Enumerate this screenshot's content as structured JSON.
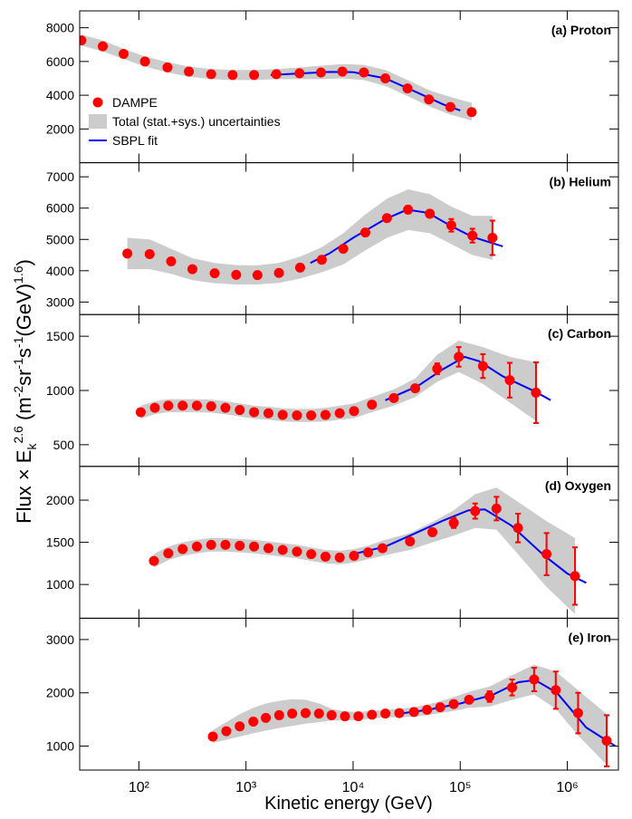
{
  "figure": {
    "xlabel": "Kinetic energy (GeV)",
    "xlog": true,
    "xlim": [
      28,
      3000000
    ],
    "xticks": [
      {
        "value": 100,
        "label": "10²"
      },
      {
        "value": 1000,
        "label": "10³"
      },
      {
        "value": 10000,
        "label": "10⁴"
      },
      {
        "value": 100000,
        "label": "10⁵"
      },
      {
        "value": 1000000,
        "label": "10⁶"
      }
    ],
    "ylabel_parts": [
      {
        "text": "Flux × E",
        "shift": "base"
      },
      {
        "text": "k",
        "shift": "sub"
      },
      {
        "text": "2.6",
        "shift": "super"
      },
      {
        "text": " (m",
        "shift": "base"
      },
      {
        "text": "-2",
        "shift": "super"
      },
      {
        "text": "sr",
        "shift": "base"
      },
      {
        "text": "-1",
        "shift": "super"
      },
      {
        "text": "s",
        "shift": "base"
      },
      {
        "text": "-1",
        "shift": "super"
      },
      {
        "text": "(GeV)",
        "shift": "base"
      },
      {
        "text": "1.6",
        "shift": "super"
      },
      {
        "text": ")",
        "shift": "base"
      }
    ],
    "legend": {
      "corner": "middle-left",
      "items": [
        {
          "name": "DAMPE",
          "color": "#ff0000"
        },
        {
          "name": "Total (stat.+sys.) uncertainties",
          "color": "#cccccc"
        },
        {
          "name": "SBPL fit",
          "color": "#0000ff"
        }
      ]
    }
  },
  "chart_data": [
    {
      "type": "scatter",
      "title": "(a) Proton",
      "ylim": [
        0,
        9000
      ],
      "yticks": [
        2000,
        4000,
        6000,
        8000
      ],
      "x": [
        29,
        46,
        72,
        114,
        185,
        293,
        473,
        750,
        1190,
        1920,
        3160,
        5010,
        7940,
        12600,
        20000,
        32200,
        51100,
        80900,
        128000
      ],
      "values": [
        7250,
        6900,
        6450,
        6000,
        5650,
        5400,
        5250,
        5200,
        5200,
        5250,
        5300,
        5350,
        5400,
        5350,
        5000,
        4400,
        3750,
        3300,
        3000
      ],
      "band_upper": [
        7600,
        7250,
        6750,
        6300,
        5950,
        5700,
        5550,
        5500,
        5500,
        5550,
        5650,
        5750,
        5850,
        5800,
        5500,
        4900,
        4300,
        3900,
        3550
      ],
      "band_lower": [
        6950,
        6600,
        6150,
        5700,
        5350,
        5100,
        4950,
        4900,
        4900,
        4950,
        4950,
        4950,
        5000,
        4900,
        4550,
        3950,
        3350,
        2850,
        2500
      ],
      "fit_x": [
        1700,
        3000,
        6000,
        10000,
        20000,
        40000,
        70000,
        100000
      ],
      "fit_values": [
        5200,
        5280,
        5380,
        5370,
        5000,
        4150,
        3450,
        3100
      ]
    },
    {
      "type": "scatter",
      "title": "(b) Helium",
      "ylim": [
        2600,
        7450
      ],
      "yticks": [
        3000,
        4000,
        5000,
        6000,
        7000
      ],
      "x": [
        78,
        126,
        200,
        316,
        510,
        810,
        1280,
        2030,
        3200,
        5100,
        8100,
        13000,
        20700,
        32600,
        52000,
        82500,
        130000,
        200000
      ],
      "values": [
        4550,
        4530,
        4300,
        4050,
        3920,
        3870,
        3860,
        3930,
        4100,
        4350,
        4700,
        5220,
        5680,
        5950,
        5820,
        5450,
        5120,
        5050
      ],
      "errors": [
        20,
        20,
        20,
        20,
        20,
        20,
        20,
        20,
        20,
        25,
        30,
        40,
        60,
        80,
        100,
        200,
        220,
        550
      ],
      "band_upper": [
        5050,
        5000,
        4700,
        4400,
        4250,
        4180,
        4170,
        4250,
        4450,
        4750,
        5200,
        5800,
        6300,
        6600,
        6450,
        6050,
        5750,
        5750
      ],
      "band_lower": [
        4050,
        4050,
        3900,
        3700,
        3600,
        3560,
        3560,
        3610,
        3750,
        3950,
        4200,
        4650,
        5050,
        5300,
        5200,
        4850,
        4500,
        4350
      ],
      "fit_x": [
        4000,
        6000,
        10000,
        20000,
        32000,
        50000,
        80000,
        130000,
        250000
      ],
      "fit_values": [
        4250,
        4550,
        5050,
        5650,
        5950,
        5850,
        5450,
        5080,
        4780
      ]
    },
    {
      "type": "scatter",
      "title": "(c) Carbon",
      "ylim": [
        300,
        1700
      ],
      "yticks": [
        500,
        1000,
        1500
      ],
      "x": [
        104,
        141,
        188,
        256,
        348,
        473,
        643,
        874,
        1190,
        1620,
        2200,
        2990,
        4060,
        5520,
        7500,
        10200,
        15000,
        24000,
        38000,
        61000,
        97000,
        163000,
        290000,
        510000
      ],
      "values": [
        800,
        840,
        860,
        860,
        860,
        855,
        840,
        820,
        800,
        790,
        775,
        770,
        770,
        775,
        790,
        810,
        870,
        930,
        1020,
        1200,
        1310,
        1225,
        1095,
        980
      ],
      "errors": [
        10,
        10,
        10,
        10,
        10,
        10,
        10,
        10,
        10,
        10,
        10,
        10,
        10,
        10,
        10,
        10,
        10,
        20,
        30,
        50,
        90,
        110,
        160,
        280
      ],
      "band_upper": [
        860,
        900,
        920,
        920,
        920,
        915,
        900,
        880,
        860,
        850,
        835,
        830,
        830,
        840,
        860,
        880,
        940,
        1010,
        1110,
        1330,
        1460,
        1400,
        1310,
        1260
      ],
      "band_lower": [
        740,
        780,
        800,
        800,
        800,
        795,
        780,
        760,
        740,
        730,
        715,
        710,
        710,
        715,
        730,
        745,
        800,
        860,
        940,
        1080,
        1170,
        1060,
        890,
        720
      ],
      "fit_x": [
        20000,
        40000,
        70000,
        110000,
        150000,
        250000,
        500000,
        700000
      ],
      "fit_values": [
        910,
        1040,
        1200,
        1310,
        1270,
        1130,
        990,
        910
      ]
    },
    {
      "type": "scatter",
      "title": "(d) Oxygen",
      "ylim": [
        600,
        2400
      ],
      "yticks": [
        1000,
        1500,
        2000
      ],
      "x": [
        138,
        188,
        256,
        348,
        473,
        643,
        874,
        1190,
        1620,
        2200,
        2990,
        4060,
        5520,
        7500,
        10200,
        13800,
        18800,
        34000,
        55000,
        87000,
        138000,
        218000,
        346000,
        640000,
        1180000
      ],
      "values": [
        1280,
        1370,
        1420,
        1450,
        1470,
        1470,
        1460,
        1450,
        1430,
        1410,
        1390,
        1360,
        1330,
        1320,
        1340,
        1380,
        1430,
        1510,
        1620,
        1730,
        1870,
        1900,
        1670,
        1360,
        1100
      ],
      "errors": [
        15,
        15,
        15,
        15,
        15,
        15,
        15,
        15,
        15,
        15,
        15,
        15,
        15,
        15,
        15,
        15,
        15,
        30,
        40,
        60,
        90,
        140,
        170,
        250,
        340
      ],
      "band_upper": [
        1360,
        1450,
        1500,
        1530,
        1550,
        1550,
        1540,
        1530,
        1510,
        1490,
        1470,
        1440,
        1410,
        1400,
        1420,
        1460,
        1520,
        1610,
        1740,
        1880,
        2070,
        2150,
        1980,
        1750,
        1550
      ],
      "band_lower": [
        1200,
        1290,
        1340,
        1370,
        1390,
        1390,
        1380,
        1370,
        1350,
        1330,
        1310,
        1280,
        1250,
        1240,
        1260,
        1300,
        1340,
        1410,
        1500,
        1580,
        1670,
        1650,
        1360,
        970,
        650
      ],
      "fit_x": [
        10000,
        20000,
        40000,
        70000,
        120000,
        170000,
        300000,
        600000,
        1000000,
        1500000
      ],
      "fit_values": [
        1360,
        1450,
        1620,
        1760,
        1880,
        1890,
        1700,
        1350,
        1130,
        1020
      ]
    },
    {
      "type": "scatter",
      "title": "(e) Iron",
      "ylim": [
        550,
        3400
      ],
      "yticks": [
        1000,
        2000,
        3000
      ],
      "x": [
        490,
        655,
        874,
        1170,
        1530,
        2040,
        2700,
        3600,
        4800,
        6300,
        8400,
        11200,
        15000,
        20000,
        27000,
        37000,
        49000,
        65000,
        87000,
        121000,
        188000,
        305000,
        490000,
        780000,
        1260000,
        2330000
      ],
      "values": [
        1180,
        1280,
        1370,
        1460,
        1530,
        1580,
        1610,
        1620,
        1610,
        1580,
        1560,
        1560,
        1590,
        1610,
        1620,
        1640,
        1680,
        1730,
        1790,
        1870,
        1930,
        2100,
        2250,
        2050,
        1620,
        1100
      ],
      "errors": [
        30,
        30,
        30,
        30,
        30,
        30,
        30,
        30,
        30,
        30,
        30,
        30,
        30,
        30,
        30,
        30,
        30,
        30,
        30,
        30,
        100,
        150,
        220,
        350,
        380,
        480
      ],
      "band_upper": [
        1300,
        1450,
        1600,
        1720,
        1800,
        1850,
        1880,
        1870,
        1800,
        1700,
        1650,
        1640,
        1660,
        1680,
        1700,
        1730,
        1780,
        1840,
        1920,
        2020,
        2120,
        2330,
        2530,
        2400,
        2050,
        1600
      ],
      "band_lower": [
        1060,
        1120,
        1180,
        1240,
        1290,
        1340,
        1380,
        1420,
        1450,
        1480,
        1480,
        1490,
        1520,
        1540,
        1540,
        1550,
        1580,
        1620,
        1660,
        1720,
        1740,
        1870,
        1970,
        1700,
        1200,
        650
      ],
      "fit_x": [
        25000,
        50000,
        100000,
        200000,
        350000,
        500000,
        800000,
        1500000,
        2800000
      ],
      "fit_values": [
        1600,
        1680,
        1800,
        1960,
        2200,
        2240,
        2000,
        1350,
        1000
      ]
    }
  ]
}
